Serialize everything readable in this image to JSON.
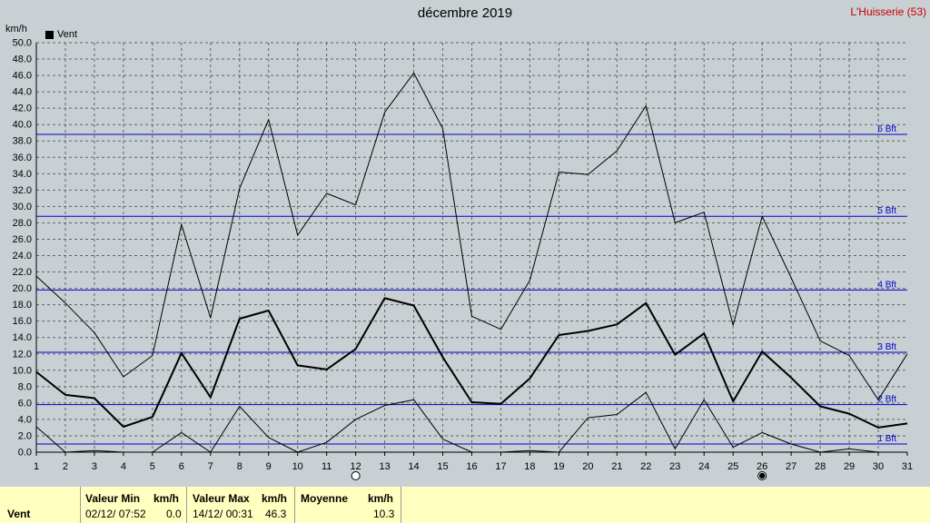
{
  "header": {
    "title": "décembre 2019",
    "station": "L'Huisserie (53)",
    "unit": "km/h",
    "legend_label": "Vent"
  },
  "chart_data": {
    "type": "line",
    "title": "décembre 2019",
    "ylabel": "km/h",
    "ylim": [
      0,
      50
    ],
    "y_ticks": [
      "0.0",
      "2.0",
      "4.0",
      "6.0",
      "8.0",
      "10.0",
      "12.0",
      "14.0",
      "16.0",
      "18.0",
      "20.0",
      "22.0",
      "24.0",
      "26.0",
      "28.0",
      "30.0",
      "32.0",
      "34.0",
      "36.0",
      "38.0",
      "40.0",
      "42.0",
      "44.0",
      "46.0",
      "48.0",
      "50.0"
    ],
    "x": [
      1,
      2,
      3,
      4,
      5,
      6,
      7,
      8,
      9,
      10,
      11,
      12,
      13,
      14,
      15,
      16,
      17,
      18,
      19,
      20,
      21,
      22,
      23,
      24,
      25,
      26,
      27,
      28,
      29,
      30,
      31
    ],
    "grid": true,
    "legend_position": "top-left",
    "series": [
      {
        "name": "Vent",
        "role": "max",
        "values": [
          21.5,
          18.2,
          14.6,
          9.2,
          11.8,
          27.8,
          16.4,
          32.2,
          40.6,
          26.5,
          31.6,
          30.2,
          41.5,
          46.3,
          39.5,
          16.6,
          15.0,
          21.0,
          34.2,
          33.9,
          36.8,
          42.3,
          28.0,
          29.3,
          15.5,
          28.8,
          21.3,
          13.6,
          11.8,
          6.4,
          12.0
        ]
      },
      {
        "name": "Vent",
        "role": "mean",
        "values": [
          9.8,
          7.0,
          6.6,
          3.1,
          4.3,
          12.1,
          6.7,
          16.3,
          17.3,
          10.6,
          10.1,
          12.6,
          18.8,
          17.9,
          11.6,
          6.1,
          5.9,
          9.0,
          14.3,
          14.8,
          15.6,
          18.2,
          11.9,
          14.5,
          6.2,
          12.3,
          9.1,
          5.6,
          4.7,
          3.0,
          3.5
        ]
      },
      {
        "name": "Vent",
        "role": "min",
        "values": [
          3.1,
          0.0,
          0.2,
          0.0,
          0.0,
          2.4,
          0.0,
          5.6,
          1.8,
          0.0,
          1.2,
          4.0,
          5.7,
          6.4,
          1.6,
          0.0,
          0.0,
          0.2,
          0.0,
          4.2,
          4.6,
          7.3,
          0.4,
          6.4,
          0.6,
          2.4,
          1.0,
          0.0,
          0.4,
          0.0,
          0.0
        ]
      }
    ],
    "beaufort": [
      {
        "label": "1 Bft",
        "value": 1.0
      },
      {
        "label": "2 Bft",
        "value": 5.8
      },
      {
        "label": "3 Bft",
        "value": 12.2
      },
      {
        "label": "4 Bft",
        "value": 19.8
      },
      {
        "label": "5 Bft",
        "value": 28.8
      },
      {
        "label": "6 Bft",
        "value": 38.8
      }
    ],
    "moon_phases": [
      {
        "day": 12,
        "phase": "full-moon"
      },
      {
        "day": 26,
        "phase": "new-moon"
      }
    ],
    "colors": {
      "background": "#c8d0d4",
      "grid": "#646464",
      "beaufort": "#0000cc",
      "series": "#000000"
    }
  },
  "stats": {
    "series_label": "Vent",
    "min": {
      "header": "Valeur Min",
      "unit": "km/h",
      "time": "02/12/ 07:52",
      "value": "0.0"
    },
    "max": {
      "header": "Valeur Max",
      "unit": "km/h",
      "time": "14/12/ 00:31",
      "value": "46.3"
    },
    "mean": {
      "header": "Moyenne",
      "unit": "km/h",
      "value": "10.3"
    }
  }
}
